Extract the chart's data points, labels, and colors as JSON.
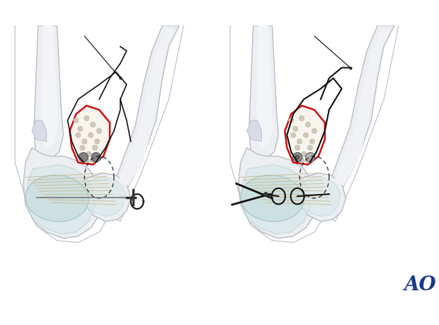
{
  "bg_color": "#ffffff",
  "ao_color": "#1a3a8c",
  "ao_text": "AO",
  "bone_light": "#eceef2",
  "bone_mid": "#d8dce6",
  "bone_edge": "#b8bcc8",
  "bone_shadow": "#c8ccd8",
  "frac_color": "#cc1111",
  "canc_fill": "#f0ece4",
  "canc_dot": "#c8c0b0",
  "cart_fill": "#c0dada",
  "cart_edge": "#90b8b8",
  "lig_color": "#c8b890",
  "suture_color": "#111111",
  "dashed_color": "#222222",
  "needle_color": "#888888",
  "hole_fill": "#909090",
  "hole_edge": "#555555"
}
